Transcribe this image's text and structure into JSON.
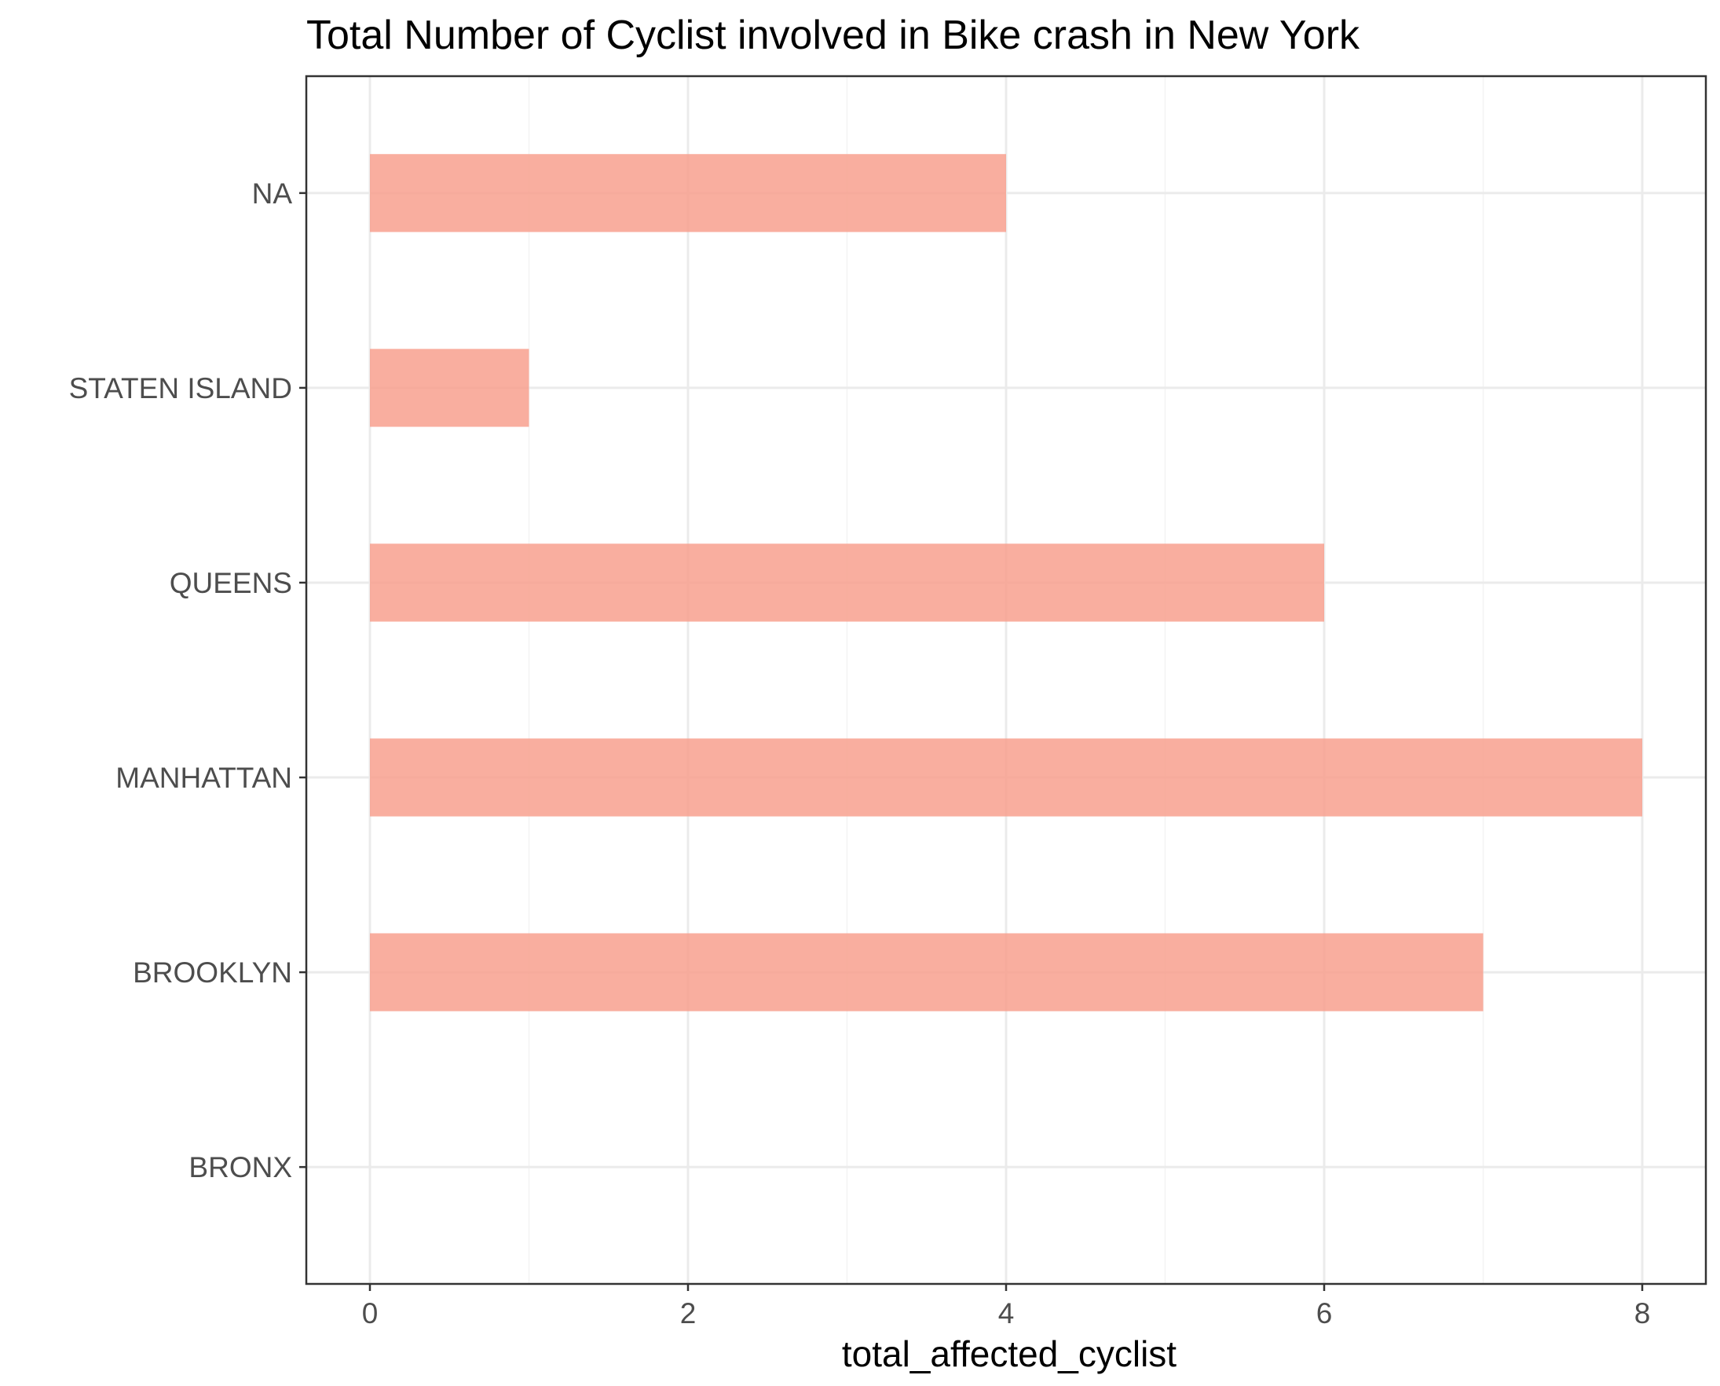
{
  "chart_data": {
    "type": "bar",
    "orientation": "horizontal",
    "title": "Total Number of Cyclist involved in Bike crash in New York",
    "xlabel": "total_affected_cyclist",
    "ylabel": "",
    "categories": [
      "BRONX",
      "BROOKLYN",
      "MANHATTAN",
      "QUEENS",
      "STATEN ISLAND",
      "NA"
    ],
    "values": [
      0,
      7,
      8,
      6,
      1,
      4
    ],
    "xlim": [
      -0.4,
      8.4
    ],
    "x_ticks": [
      "0",
      "2",
      "4",
      "6",
      "8"
    ],
    "grid": true,
    "legend": "none",
    "colors": {
      "bar": "#f8a08e",
      "bar_opacity": 0.85,
      "grid_major": "#ebebeb",
      "grid_minor": "#f3f3f3",
      "border": "#333333",
      "tick": "#333333",
      "tick_label": "#4d4d4d",
      "text": "#000000"
    }
  }
}
